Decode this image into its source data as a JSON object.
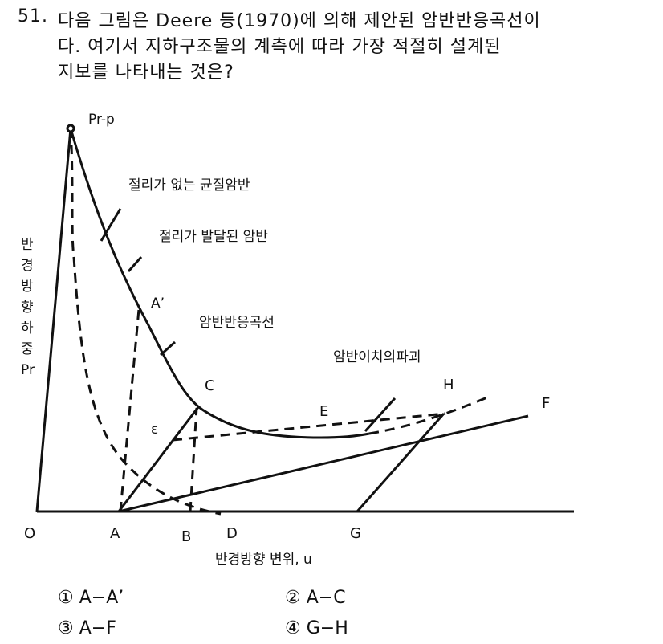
{
  "question": {
    "number": "51.",
    "lines": [
      "다음 그림은 Deere 등(1970)에 의해 제안된 암반반응곡선이",
      "다. 여기서 지하구조물의 계측에 따라 가장 적절히 설계된",
      "지보를 나타내는 것은?"
    ]
  },
  "figure": {
    "peak": "Pr-p",
    "curve_intact": "절리가 없는 균질암반",
    "curve_jointed": "절리가 발달된 암반",
    "a_prime": "A’",
    "reaction_curve": "암반반응곡선",
    "loosening": "암반이치의파괴",
    "c": "C",
    "h": "H",
    "f": "F",
    "e": "E",
    "epsilon": "ε",
    "y_label": [
      "반",
      "경",
      "방",
      "향",
      "하",
      "중",
      "Pr"
    ],
    "o": "O",
    "a": "A",
    "b": "B",
    "d": "D",
    "g": "G",
    "x_label": "반경방향 변위, u"
  },
  "options": [
    "① A−A’",
    "② A−C",
    "③ A−F",
    "④ G−H"
  ]
}
